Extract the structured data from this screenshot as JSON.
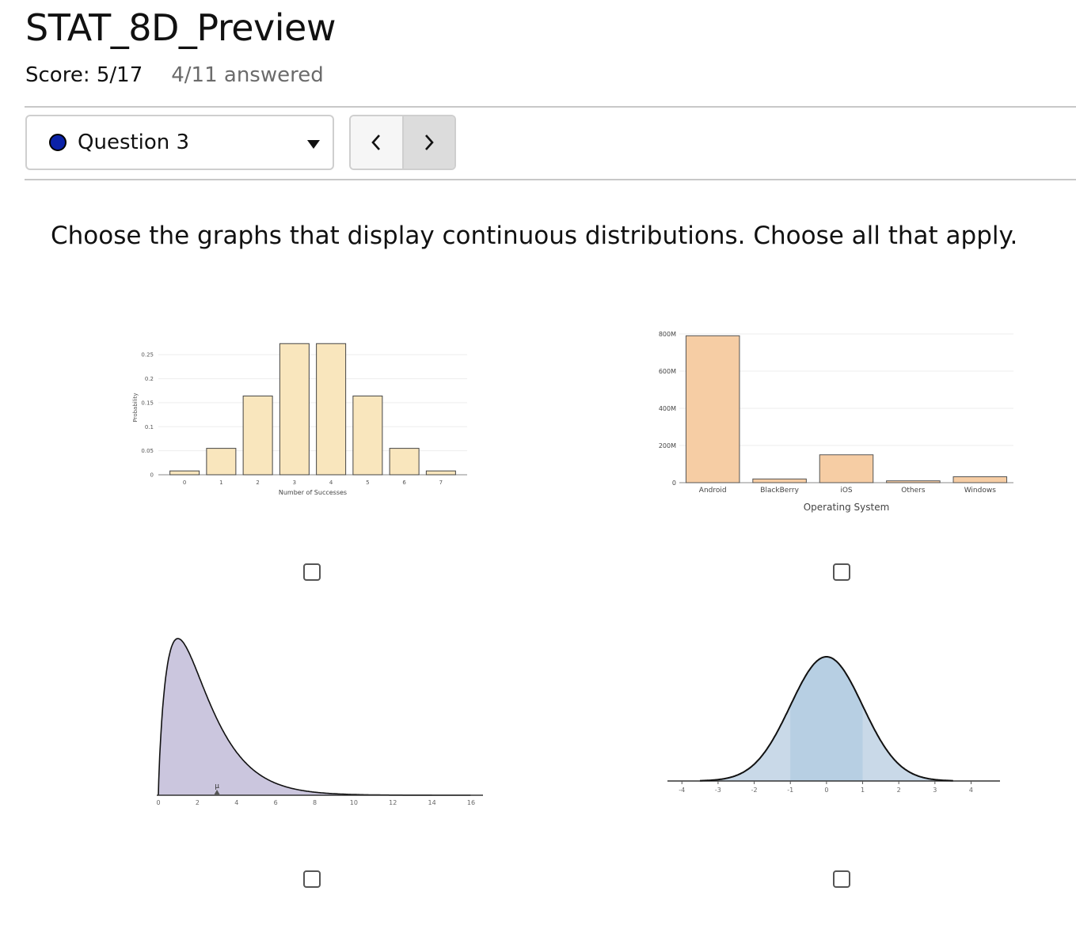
{
  "header": {
    "title": "STAT_8D_Preview",
    "score": "Score: 5/17",
    "answered": "4/11 answered"
  },
  "question_nav": {
    "current": "Question 3",
    "prev_label": "<",
    "next_label": ">",
    "status_color": "#0b22a8"
  },
  "prompt": "Choose the graphs that display continuous distributions. Choose all that apply.",
  "choices": [
    {
      "checked": false
    },
    {
      "checked": false
    },
    {
      "checked": false
    },
    {
      "checked": false
    }
  ],
  "chart_data": [
    {
      "type": "bar",
      "categories": [
        "0",
        "1",
        "2",
        "3",
        "4",
        "5",
        "6",
        "7"
      ],
      "values": [
        0.008,
        0.055,
        0.164,
        0.273,
        0.273,
        0.164,
        0.055,
        0.008
      ],
      "xlabel": "Number of Successes",
      "ylabel": "Probability",
      "yticks": [
        "0",
        "0.05",
        "0.1",
        "0.15",
        "0.2",
        "0.25"
      ],
      "ylim": [
        0,
        0.28
      ],
      "color": "#f9e6bd"
    },
    {
      "type": "bar",
      "categories": [
        "Android",
        "BlackBerry",
        "iOS",
        "Others",
        "Windows"
      ],
      "values": [
        790,
        20,
        150,
        10,
        32
      ],
      "xlabel": "Operating System",
      "ylabel": "",
      "yticks": [
        "0",
        "200M",
        "400M",
        "600M",
        "800M"
      ],
      "ylim": [
        0,
        800
      ],
      "color": "#f6cda4"
    },
    {
      "type": "area",
      "xticks": [
        "0",
        "2",
        "4",
        "6",
        "8",
        "10",
        "12",
        "14",
        "16"
      ],
      "xlim": [
        0,
        16
      ],
      "marker_label": "μ",
      "marker_x": 3,
      "color": "#cbc6de"
    },
    {
      "type": "area",
      "xticks": [
        "-4",
        "-3",
        "-2",
        "-1",
        "0",
        "1",
        "2",
        "3",
        "4"
      ],
      "xlim": [
        -4.4,
        4.8
      ],
      "color": "#c9d9e8",
      "inner_color": "#b7cfe3",
      "inner_range": [
        -1,
        1
      ]
    }
  ]
}
